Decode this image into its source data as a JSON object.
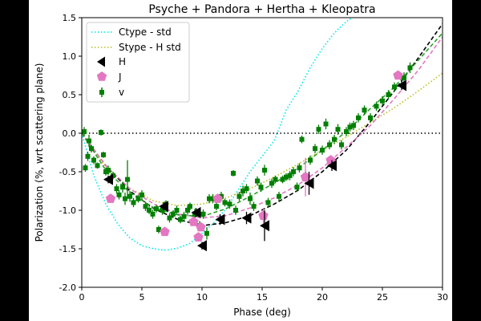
{
  "chart_data": {
    "type": "scatter",
    "title": "Psyche + Pandora + Hertha + Kleopatra",
    "xlabel": "Phase (deg)",
    "ylabel": "Polarization (%, wrt scattering plane)",
    "xlim": [
      0,
      30
    ],
    "ylim": [
      -2.0,
      1.5
    ],
    "xticks": [
      0,
      5,
      10,
      15,
      20,
      25,
      30
    ],
    "xtick_labels": [
      "0",
      "5",
      "10",
      "15",
      "20",
      "25",
      "30"
    ],
    "yticks": [
      -2.0,
      -1.5,
      -1.0,
      -0.5,
      0.0,
      0.5,
      1.0,
      1.5
    ],
    "ytick_labels": [
      "-2.0",
      "-1.5",
      "-1.0",
      "-0.5",
      "0.0",
      "0.5",
      "1.0",
      "1.5"
    ],
    "grid": false,
    "legend_position": "top-left",
    "reference_line": {
      "y": 0.0,
      "style": "dotted",
      "color": "#000000"
    },
    "curves": [
      {
        "name": "Ctype - std",
        "color": "#00e5ee",
        "style": "dotted",
        "x": [
          0,
          1,
          2,
          3,
          4,
          5,
          6,
          7,
          8,
          9,
          10,
          11,
          12,
          13,
          14,
          15,
          16,
          17,
          18,
          19,
          20,
          21,
          22,
          23,
          24,
          25
        ],
        "y": [
          0,
          -0.55,
          -0.92,
          -1.18,
          -1.36,
          -1.46,
          -1.5,
          -1.52,
          -1.49,
          -1.43,
          -1.3,
          -1.16,
          -0.98,
          -0.74,
          -0.5,
          -0.3,
          -0.1,
          0.3,
          0.55,
          0.85,
          1.1,
          1.3,
          1.45,
          1.55,
          1.65,
          1.75
        ]
      },
      {
        "name": "Stype - H std",
        "color": "#bcbd22",
        "style": "dotted",
        "x": [
          0,
          2,
          4,
          6,
          8,
          10,
          12,
          14,
          16,
          18,
          20,
          22,
          24,
          26,
          28,
          30
        ],
        "y": [
          0,
          -0.45,
          -0.72,
          -0.88,
          -0.94,
          -0.92,
          -0.84,
          -0.72,
          -0.57,
          -0.4,
          -0.22,
          -0.05,
          0.14,
          0.33,
          0.55,
          0.78
        ]
      },
      {
        "name": "",
        "color": "#000000",
        "style": "dashed",
        "x": [
          0,
          2,
          4,
          6,
          8,
          10,
          12,
          14,
          16,
          18,
          20,
          22,
          24,
          26,
          28,
          30
        ],
        "y": [
          0,
          -0.42,
          -0.75,
          -0.98,
          -1.12,
          -1.2,
          -1.16,
          -1.07,
          -0.92,
          -0.74,
          -0.5,
          -0.22,
          0.15,
          0.55,
          0.98,
          1.42
        ]
      },
      {
        "name": "",
        "color": "#e377c2",
        "style": "dashed",
        "x": [
          0,
          2,
          4,
          6,
          8,
          10,
          12,
          14,
          16,
          18,
          20,
          22,
          24,
          26,
          28,
          30
        ],
        "y": [
          0,
          -0.42,
          -0.72,
          -0.92,
          -1.05,
          -1.1,
          -1.07,
          -0.97,
          -0.84,
          -0.67,
          -0.45,
          -0.18,
          0.1,
          0.45,
          0.82,
          1.25
        ]
      },
      {
        "name": "",
        "color": "#2ca02c",
        "style": "dashed",
        "x": [
          0,
          2,
          4,
          6,
          8,
          10,
          12,
          14,
          16,
          18,
          20,
          22,
          24,
          26,
          28,
          30
        ],
        "y": [
          0,
          -0.48,
          -0.77,
          -0.97,
          -1.06,
          -1.08,
          -0.98,
          -0.82,
          -0.65,
          -0.45,
          -0.22,
          0.02,
          0.32,
          0.6,
          0.95,
          1.3
        ]
      }
    ],
    "series": [
      {
        "name": "H",
        "marker": "left-triangle",
        "color": "#000000",
        "points": [
          {
            "x": 2.2,
            "y": -0.6,
            "yerr": 0.05
          },
          {
            "x": 6.8,
            "y": -0.95,
            "yerr": 0.05
          },
          {
            "x": 9.5,
            "y": -1.03,
            "yerr": 0.06
          },
          {
            "x": 10.0,
            "y": -1.46,
            "yerr": 0.05
          },
          {
            "x": 11.5,
            "y": -1.12,
            "yerr": 0.07
          },
          {
            "x": 13.7,
            "y": -1.1,
            "yerr": 0.08
          },
          {
            "x": 15.2,
            "y": -1.2,
            "yerr": 0.2
          },
          {
            "x": 18.9,
            "y": -0.65,
            "yerr": 0.15
          },
          {
            "x": 20.8,
            "y": -0.42,
            "yerr": 0.07
          },
          {
            "x": 26.6,
            "y": 0.62,
            "yerr": 0.06
          }
        ]
      },
      {
        "name": "J",
        "marker": "pentagon",
        "color": "#e377c2",
        "points": [
          {
            "x": 2.4,
            "y": -0.85,
            "yerr": 0.04
          },
          {
            "x": 6.9,
            "y": -1.28,
            "yerr": 0.04
          },
          {
            "x": 9.3,
            "y": -1.15,
            "yerr": 0.05
          },
          {
            "x": 9.7,
            "y": -1.35,
            "yerr": 0.05
          },
          {
            "x": 9.9,
            "y": -1.22,
            "yerr": 0.05
          },
          {
            "x": 11.3,
            "y": -0.85,
            "yerr": 0.05
          },
          {
            "x": 15.1,
            "y": -1.07,
            "yerr": 0.1
          },
          {
            "x": 18.6,
            "y": -0.57,
            "yerr": 0.25
          },
          {
            "x": 20.7,
            "y": -0.35,
            "yerr": 0.06
          },
          {
            "x": 26.3,
            "y": 0.75,
            "yerr": 0.05
          }
        ]
      },
      {
        "name": "v",
        "marker": "square",
        "color": "#008000",
        "points": [
          {
            "x": 0.2,
            "y": 0.02,
            "yerr": 0.06
          },
          {
            "x": 0.3,
            "y": -0.45,
            "yerr": 0.05
          },
          {
            "x": 0.5,
            "y": -0.3,
            "yerr": 0.06
          },
          {
            "x": 0.6,
            "y": -0.1,
            "yerr": 0.08
          },
          {
            "x": 0.8,
            "y": -0.2,
            "yerr": 0.05
          },
          {
            "x": 1.0,
            "y": -0.35,
            "yerr": 0.05
          },
          {
            "x": 1.3,
            "y": -0.42,
            "yerr": 0.04
          },
          {
            "x": 1.6,
            "y": 0.01,
            "yerr": 0.04
          },
          {
            "x": 1.8,
            "y": -0.28,
            "yerr": 0.04
          },
          {
            "x": 2.0,
            "y": -0.5,
            "yerr": 0.05
          },
          {
            "x": 2.2,
            "y": -0.48,
            "yerr": 0.06
          },
          {
            "x": 2.6,
            "y": -0.55,
            "yerr": 0.05
          },
          {
            "x": 2.9,
            "y": -0.72,
            "yerr": 0.06
          },
          {
            "x": 3.1,
            "y": -0.8,
            "yerr": 0.06
          },
          {
            "x": 3.4,
            "y": -0.7,
            "yerr": 0.07
          },
          {
            "x": 3.6,
            "y": -0.85,
            "yerr": 0.08
          },
          {
            "x": 3.8,
            "y": -0.6,
            "yerr": 0.25
          },
          {
            "x": 4.0,
            "y": -0.82,
            "yerr": 0.07
          },
          {
            "x": 4.3,
            "y": -0.9,
            "yerr": 0.06
          },
          {
            "x": 4.7,
            "y": -0.85,
            "yerr": 0.05
          },
          {
            "x": 5.0,
            "y": -0.8,
            "yerr": 0.06
          },
          {
            "x": 5.3,
            "y": -0.95,
            "yerr": 0.06
          },
          {
            "x": 5.6,
            "y": -1.0,
            "yerr": 0.05
          },
          {
            "x": 5.9,
            "y": -1.05,
            "yerr": 0.06
          },
          {
            "x": 6.2,
            "y": -0.98,
            "yerr": 0.05
          },
          {
            "x": 6.4,
            "y": -1.25,
            "yerr": 0.05
          },
          {
            "x": 6.7,
            "y": -1.0,
            "yerr": 0.06
          },
          {
            "x": 7.0,
            "y": -0.92,
            "yerr": 0.05
          },
          {
            "x": 7.3,
            "y": -1.1,
            "yerr": 0.06
          },
          {
            "x": 7.6,
            "y": -1.05,
            "yerr": 0.05
          },
          {
            "x": 7.9,
            "y": -1.0,
            "yerr": 0.06
          },
          {
            "x": 8.2,
            "y": -1.12,
            "yerr": 0.05
          },
          {
            "x": 8.5,
            "y": -1.08,
            "yerr": 0.06
          },
          {
            "x": 8.8,
            "y": -1.0,
            "yerr": 0.06
          },
          {
            "x": 9.0,
            "y": -0.95,
            "yerr": 0.05
          },
          {
            "x": 9.4,
            "y": -1.05,
            "yerr": 0.07
          },
          {
            "x": 9.8,
            "y": -1.2,
            "yerr": 0.06
          },
          {
            "x": 10.1,
            "y": -1.05,
            "yerr": 0.06
          },
          {
            "x": 10.4,
            "y": -1.3,
            "yerr": 0.08
          },
          {
            "x": 10.6,
            "y": -0.85,
            "yerr": 0.06
          },
          {
            "x": 10.9,
            "y": -0.85,
            "yerr": 0.06
          },
          {
            "x": 11.2,
            "y": -0.95,
            "yerr": 0.05
          },
          {
            "x": 11.6,
            "y": -0.82,
            "yerr": 0.06
          },
          {
            "x": 11.9,
            "y": -0.9,
            "yerr": 0.05
          },
          {
            "x": 12.3,
            "y": -0.92,
            "yerr": 0.06
          },
          {
            "x": 12.6,
            "y": -0.52,
            "yerr": 0.04
          },
          {
            "x": 12.8,
            "y": -1.0,
            "yerr": 0.06
          },
          {
            "x": 13.1,
            "y": -0.82,
            "yerr": 0.06
          },
          {
            "x": 13.4,
            "y": -0.75,
            "yerr": 0.07
          },
          {
            "x": 13.7,
            "y": -0.72,
            "yerr": 0.06
          },
          {
            "x": 14.0,
            "y": -0.85,
            "yerr": 0.08
          },
          {
            "x": 14.3,
            "y": -0.95,
            "yerr": 0.06
          },
          {
            "x": 14.6,
            "y": -0.62,
            "yerr": 0.06
          },
          {
            "x": 14.9,
            "y": -0.7,
            "yerr": 0.06
          },
          {
            "x": 15.2,
            "y": -0.48,
            "yerr": 0.07
          },
          {
            "x": 15.5,
            "y": -0.9,
            "yerr": 0.06
          },
          {
            "x": 15.8,
            "y": -0.65,
            "yerr": 0.06
          },
          {
            "x": 16.1,
            "y": -0.6,
            "yerr": 0.05
          },
          {
            "x": 16.4,
            "y": -0.82,
            "yerr": 0.06
          },
          {
            "x": 16.7,
            "y": -0.6,
            "yerr": 0.05
          },
          {
            "x": 17.0,
            "y": -0.57,
            "yerr": 0.05
          },
          {
            "x": 17.3,
            "y": -0.55,
            "yerr": 0.06
          },
          {
            "x": 17.6,
            "y": -0.5,
            "yerr": 0.06
          },
          {
            "x": 17.9,
            "y": -0.7,
            "yerr": 0.06
          },
          {
            "x": 18.1,
            "y": -0.45,
            "yerr": 0.06
          },
          {
            "x": 18.3,
            "y": -0.08,
            "yerr": 0.05
          },
          {
            "x": 18.6,
            "y": -0.55,
            "yerr": 0.06
          },
          {
            "x": 19.0,
            "y": -0.35,
            "yerr": 0.06
          },
          {
            "x": 19.4,
            "y": -0.2,
            "yerr": 0.06
          },
          {
            "x": 19.7,
            "y": 0.05,
            "yerr": 0.06
          },
          {
            "x": 20.0,
            "y": -0.22,
            "yerr": 0.06
          },
          {
            "x": 20.3,
            "y": 0.12,
            "yerr": 0.07
          },
          {
            "x": 20.6,
            "y": -0.15,
            "yerr": 0.06
          },
          {
            "x": 21.0,
            "y": -0.08,
            "yerr": 0.06
          },
          {
            "x": 21.3,
            "y": 0.05,
            "yerr": 0.07
          },
          {
            "x": 21.6,
            "y": -0.15,
            "yerr": 0.06
          },
          {
            "x": 22.0,
            "y": 0.02,
            "yerr": 0.06
          },
          {
            "x": 22.3,
            "y": 0.08,
            "yerr": 0.06
          },
          {
            "x": 22.6,
            "y": 0.1,
            "yerr": 0.06
          },
          {
            "x": 23.0,
            "y": 0.2,
            "yerr": 0.06
          },
          {
            "x": 23.5,
            "y": 0.3,
            "yerr": 0.06
          },
          {
            "x": 24.0,
            "y": 0.2,
            "yerr": 0.06
          },
          {
            "x": 24.5,
            "y": 0.35,
            "yerr": 0.06
          },
          {
            "x": 25.0,
            "y": 0.42,
            "yerr": 0.06
          },
          {
            "x": 25.5,
            "y": 0.5,
            "yerr": 0.06
          },
          {
            "x": 26.0,
            "y": 0.6,
            "yerr": 0.06
          },
          {
            "x": 26.8,
            "y": 0.72,
            "yerr": 0.07
          },
          {
            "x": 27.3,
            "y": 0.85,
            "yerr": 0.07
          }
        ]
      }
    ]
  }
}
